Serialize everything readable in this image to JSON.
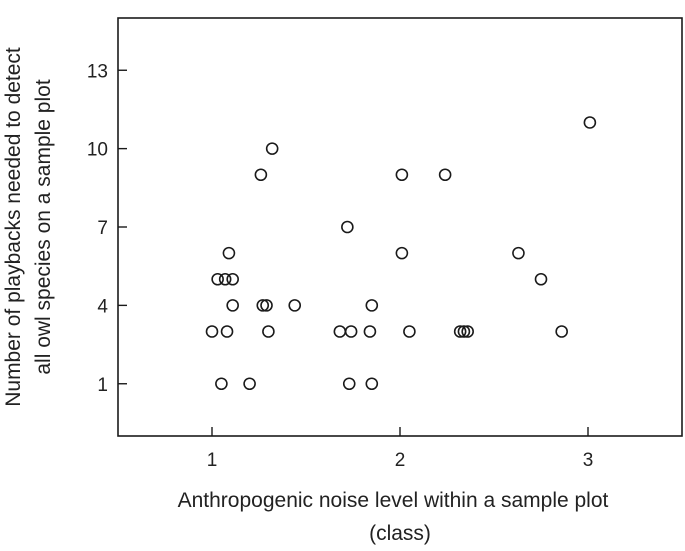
{
  "chart_data": {
    "type": "scatter",
    "title": "",
    "xlabel": [
      "Anthropogenic noise level within a sample plot",
      "(class)"
    ],
    "ylabel": [
      "Number of playbacks needed to detect",
      "all owl species on a sample plot"
    ],
    "xlim": [
      0.5,
      3.5
    ],
    "ylim": [
      -1,
      15
    ],
    "xticks": [
      1,
      2,
      3
    ],
    "yticks": [
      1,
      4,
      7,
      10,
      13
    ],
    "grid": false,
    "points": [
      {
        "x": 1.0,
        "y": 3
      },
      {
        "x": 1.03,
        "y": 5
      },
      {
        "x": 1.05,
        "y": 1
      },
      {
        "x": 1.07,
        "y": 5
      },
      {
        "x": 1.08,
        "y": 3
      },
      {
        "x": 1.09,
        "y": 6
      },
      {
        "x": 1.11,
        "y": 4
      },
      {
        "x": 1.11,
        "y": 5
      },
      {
        "x": 1.2,
        "y": 1
      },
      {
        "x": 1.26,
        "y": 9
      },
      {
        "x": 1.27,
        "y": 4
      },
      {
        "x": 1.29,
        "y": 4
      },
      {
        "x": 1.3,
        "y": 3
      },
      {
        "x": 1.32,
        "y": 10
      },
      {
        "x": 1.44,
        "y": 4
      },
      {
        "x": 1.68,
        "y": 3
      },
      {
        "x": 1.72,
        "y": 7
      },
      {
        "x": 1.73,
        "y": 1
      },
      {
        "x": 1.74,
        "y": 3
      },
      {
        "x": 1.84,
        "y": 3
      },
      {
        "x": 1.85,
        "y": 1
      },
      {
        "x": 1.85,
        "y": 4
      },
      {
        "x": 2.01,
        "y": 9
      },
      {
        "x": 2.01,
        "y": 6
      },
      {
        "x": 2.05,
        "y": 3
      },
      {
        "x": 2.24,
        "y": 9
      },
      {
        "x": 2.32,
        "y": 3
      },
      {
        "x": 2.34,
        "y": 3
      },
      {
        "x": 2.36,
        "y": 3
      },
      {
        "x": 2.63,
        "y": 6
      },
      {
        "x": 2.75,
        "y": 5
      },
      {
        "x": 2.86,
        "y": 3
      },
      {
        "x": 3.01,
        "y": 11
      }
    ]
  }
}
